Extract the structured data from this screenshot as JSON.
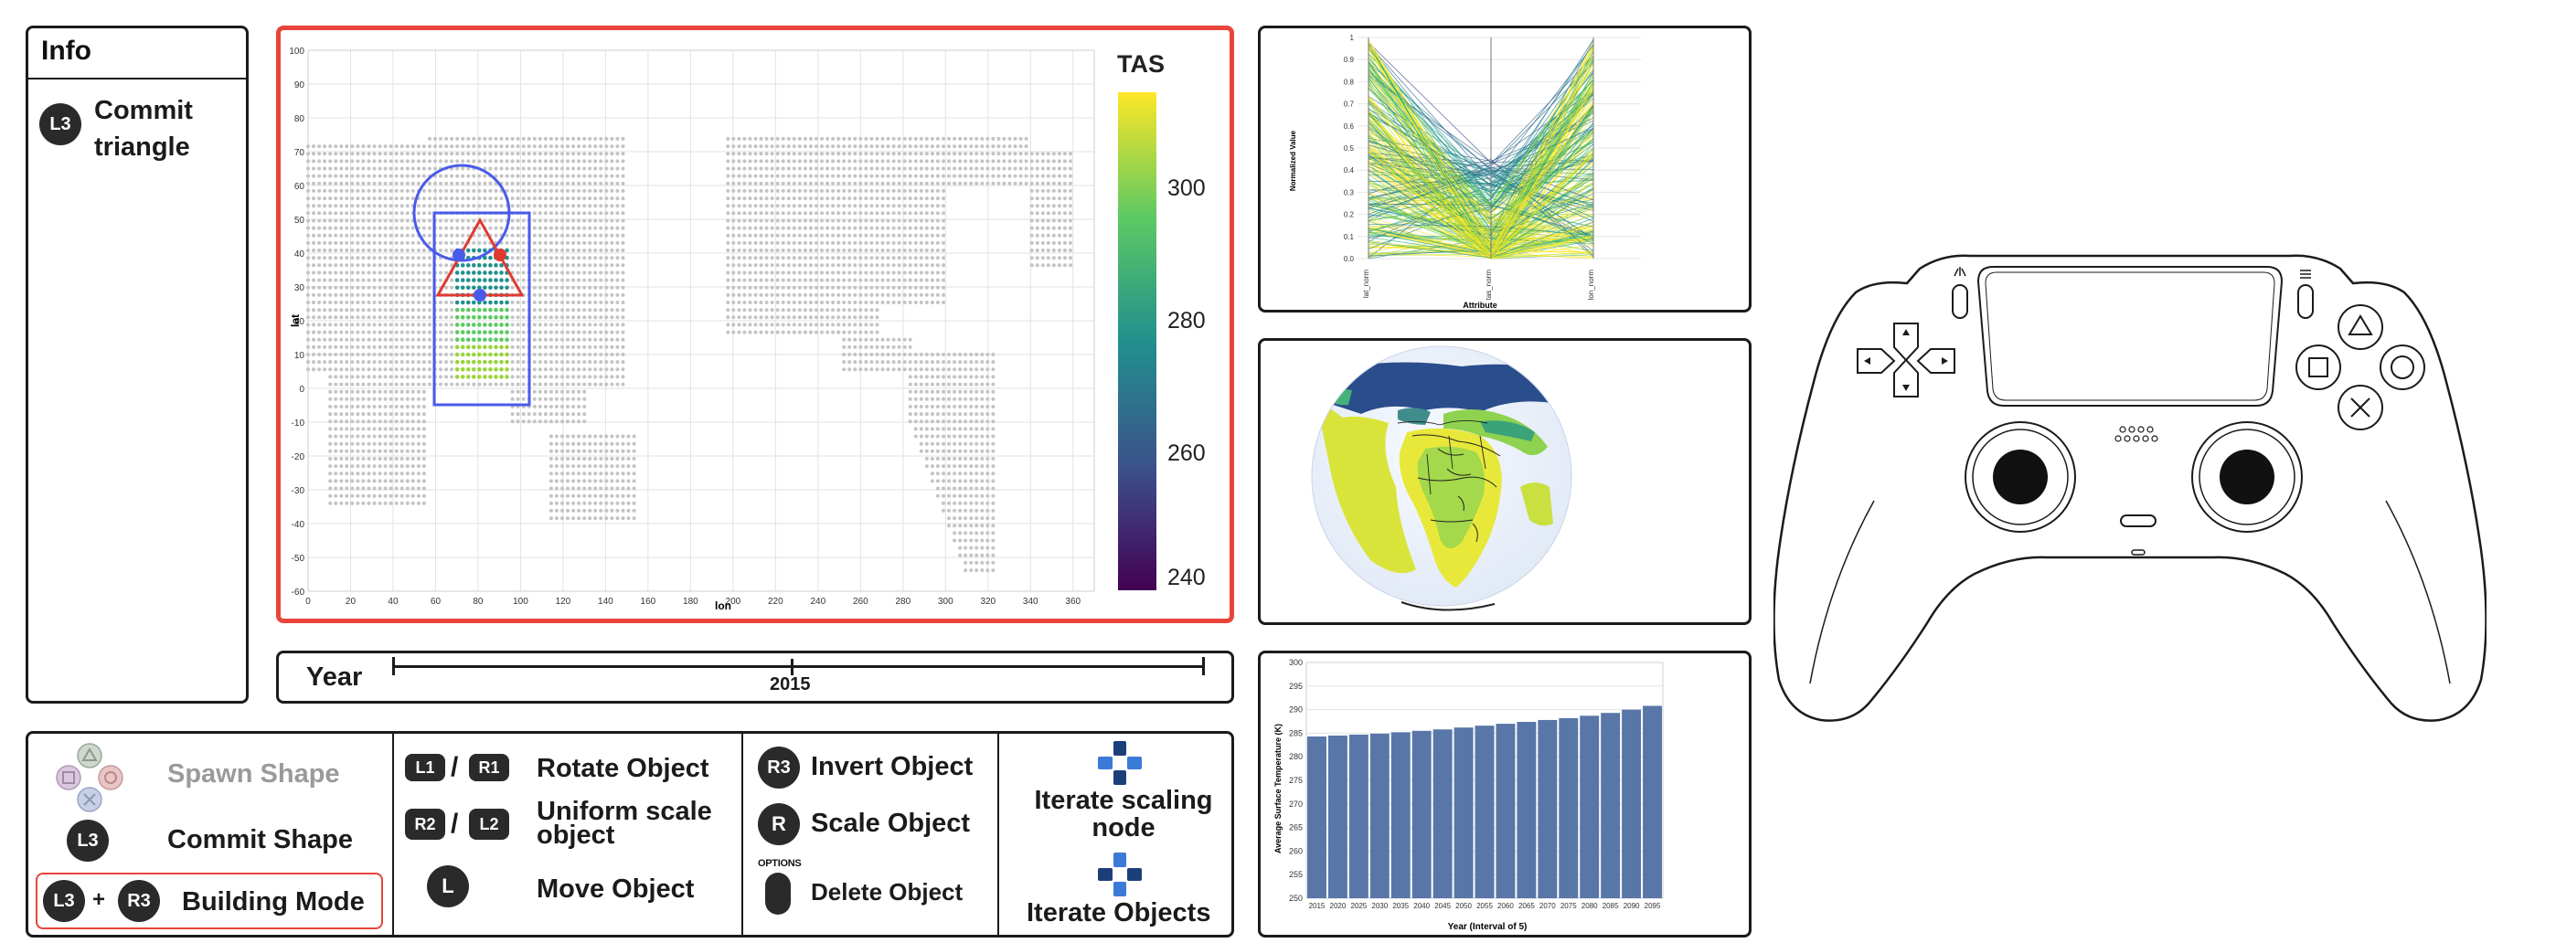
{
  "info": {
    "title": "Info",
    "action_button": "L3",
    "action_label_line1": "Commit",
    "action_label_line2": "triangle"
  },
  "scatter": {
    "y_label": "lat",
    "x_label": "lon",
    "colorbar_title": "TAS",
    "colorbar_ticks": [
      "300",
      "280",
      "260",
      "240"
    ],
    "colors": {
      "border": "#e8443a",
      "selection": "#4a5bea",
      "triangle": "#e03a32"
    }
  },
  "year_slider": {
    "label": "Year",
    "value": "2015"
  },
  "controls": {
    "spawn_label": "Spawn Shape",
    "commit_button": "L3",
    "commit_label": "Commit Shape",
    "building_btn_a": "L3",
    "building_plus": "+",
    "building_btn_b": "R3",
    "building_label": "Building Mode",
    "rotate_btn_a": "L1",
    "rotate_sep": "/",
    "rotate_btn_b": "R1",
    "rotate_label": "Rotate Object",
    "scale_btn_a": "R2",
    "scale_sep": "/",
    "scale_btn_b": "L2",
    "uniform_label_line1": "Uniform scale",
    "uniform_label_line2": "object",
    "move_btn": "L",
    "move_label": "Move Object",
    "invert_btn": "R3",
    "invert_label": "Invert Object",
    "scale_obj_btn": "R",
    "scale_obj_label": "Scale Object",
    "options_caption": "OPTIONS",
    "delete_label": "Delete Object",
    "iterate_scaling_line1": "Iterate scaling",
    "iterate_scaling_line2": "node",
    "iterate_objects_label": "Iterate Objects"
  },
  "parallel": {
    "y_label": "Normalized Value",
    "x_label": "Attribute",
    "axes": [
      "lat_norm",
      "tas_norm",
      "lon_norm"
    ],
    "y_ticks": [
      "1",
      "0.9",
      "0.8",
      "0.7",
      "0.6",
      "0.5",
      "0.4",
      "0.3",
      "0.2",
      "0.1",
      "0.0"
    ]
  },
  "chart_data": {
    "type": "bar",
    "title": "",
    "xlabel": "Year (Interval of 5)",
    "ylabel": "Average Surface Temperature (K)",
    "ylim": [
      250,
      300
    ],
    "yticks": [
      250,
      255,
      260,
      265,
      270,
      275,
      280,
      285,
      290,
      295,
      300
    ],
    "categories": [
      "2015",
      "2020",
      "2025",
      "2030",
      "2035",
      "2040",
      "2045",
      "2050",
      "2055",
      "2060",
      "2065",
      "2070",
      "2075",
      "2080",
      "2085",
      "2090",
      "2095"
    ],
    "values": [
      284.3,
      284.5,
      284.7,
      284.9,
      285.2,
      285.5,
      285.8,
      286.2,
      286.6,
      287.0,
      287.4,
      287.8,
      288.2,
      288.7,
      289.3,
      290.0,
      290.8
    ],
    "bar_color": "#5976a8",
    "grid": true
  }
}
